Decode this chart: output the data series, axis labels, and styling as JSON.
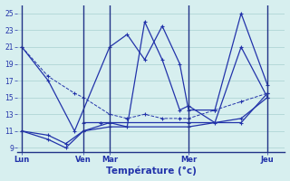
{
  "xlabel": "Température (°c)",
  "background_color": "#d7efef",
  "grid_color": "#a8d0d0",
  "line_color": "#2233aa",
  "separator_color": "#223388",
  "x_tick_labels": [
    "Lun",
    "Ven",
    "Mar",
    "Mer",
    "Jeu"
  ],
  "x_tick_positions": [
    0,
    7,
    10,
    19,
    28
  ],
  "x_separator_positions": [
    0,
    7,
    10,
    19,
    28
  ],
  "ylim": [
    8.5,
    26
  ],
  "xlim": [
    -0.5,
    30
  ],
  "yticks": [
    9,
    11,
    13,
    15,
    17,
    19,
    21,
    23,
    25
  ],
  "series": [
    {
      "x": [
        0,
        3,
        6,
        10,
        12,
        14,
        16,
        18,
        19,
        22,
        25,
        28
      ],
      "y": [
        21,
        17,
        11,
        21,
        22.5,
        19.5,
        23.5,
        19,
        13.5,
        13.5,
        25,
        16.5
      ],
      "dashed": false
    },
    {
      "x": [
        7,
        9,
        10,
        12,
        14,
        16,
        18,
        19,
        22,
        25,
        28
      ],
      "y": [
        12,
        12,
        12,
        11.5,
        24,
        19.5,
        13.5,
        14,
        12,
        21,
        15
      ],
      "dashed": false
    },
    {
      "x": [
        0,
        3,
        6,
        7,
        10,
        12,
        14,
        16,
        18,
        19,
        22,
        25,
        28
      ],
      "y": [
        21,
        17.5,
        15.5,
        15,
        13,
        12.5,
        13,
        12.5,
        12.5,
        12.5,
        13.5,
        14.5,
        15.5
      ],
      "dashed": true
    },
    {
      "x": [
        0,
        3,
        5,
        7,
        10,
        19,
        25,
        28
      ],
      "y": [
        11,
        10.5,
        9.5,
        11,
        11.5,
        11.5,
        12.5,
        15
      ],
      "dashed": false
    },
    {
      "x": [
        0,
        3,
        5,
        7,
        10,
        19,
        25,
        28
      ],
      "y": [
        11,
        10,
        9,
        11,
        12,
        12,
        12,
        15.5
      ],
      "dashed": false
    }
  ]
}
